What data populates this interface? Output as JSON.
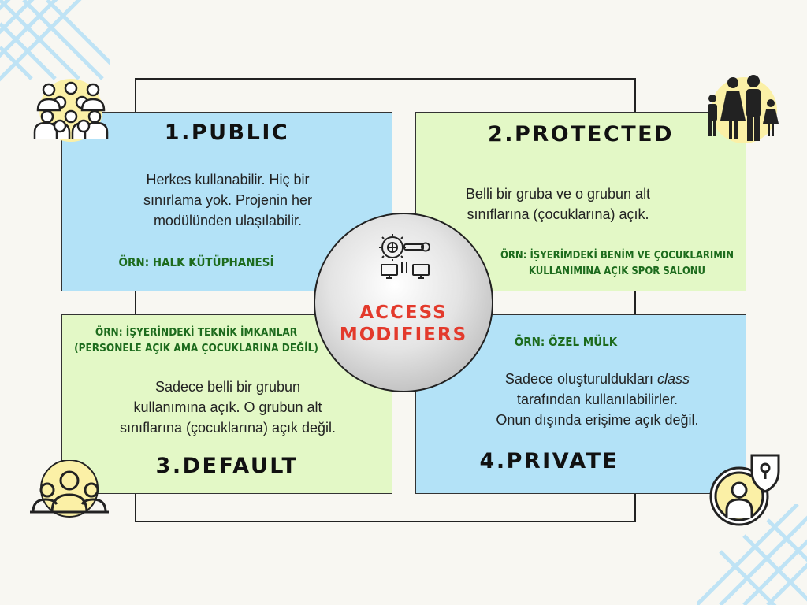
{
  "center": {
    "line1": "ACCESS",
    "line2": "MODIFIERS",
    "icon": "network-gear-key-icon",
    "color": "#e33a2c"
  },
  "public": {
    "title": "1.PUBLIC",
    "desc": [
      "Herkes kullanabilir. Hiç bir",
      "sınırlama yok. Projenin her",
      "modülünden ulaşılabilir."
    ],
    "example": "ÖRN: HALK KÜTÜPHANESİ",
    "icon": "crowd-icon"
  },
  "protected": {
    "title": "2.PROTECTED",
    "desc": [
      "Belli bir gruba ve o grubun alt",
      "sınıflarına (çocuklarına) açık."
    ],
    "example": [
      "ÖRN: İŞYERİMDEKİ BENİM VE ÇOCUKLARIMIN",
      "KULLANIMINA AÇIK SPOR SALONU"
    ],
    "icon": "family-icon"
  },
  "default": {
    "title": "3.DEFAULT",
    "desc": [
      "Sadece belli bir grubun",
      "kullanımına açık. O grubun alt",
      "sınıflarına (çocuklarına) açık değil."
    ],
    "example": [
      "ÖRN: İŞYERİNDEKİ TEKNİK İMKANLAR",
      "(PERSONELE AÇIK AMA ÇOCUKLARINA DEĞİL)"
    ],
    "icon": "group-icon"
  },
  "private": {
    "title": "4.PRIVATE",
    "desc_a": "Sadece oluşturuldukları ",
    "desc_em": "class",
    "desc_b": "tarafından kullanılabilirler.",
    "desc_c": "Onun dışında erişime açık değil.",
    "example": "ÖRN: ÖZEL MÜLK",
    "icon": "private-user-lock-icon"
  },
  "colors": {
    "blue_box": "#b3e2f7",
    "green_box": "#e3f8c6",
    "example_text": "#1d6b1d",
    "icon_fill": "#fbf0a6",
    "deco_grid": "#bfe3f5"
  }
}
